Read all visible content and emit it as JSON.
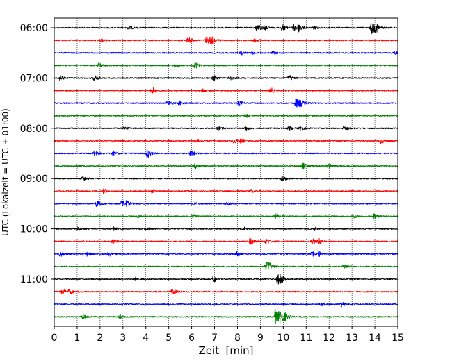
{
  "chart_data": {
    "type": "line",
    "subtype": "helicorder-seismogram",
    "xlabel": "Zeit  [min]",
    "ylabel": "UTC (Lokalzeit = UTC + 01:00)",
    "xlim": [
      0,
      15
    ],
    "x_ticks": [
      0,
      1,
      2,
      3,
      4,
      5,
      6,
      7,
      8,
      9,
      10,
      11,
      12,
      13,
      14,
      15
    ],
    "y_tick_labels": [
      "06:00",
      "07:00",
      "08:00",
      "09:00",
      "10:00",
      "11:00"
    ],
    "grid": "vertical-dotted",
    "trace_colors": [
      "#000000",
      "#ff0000",
      "#0000ff",
      "#008000"
    ],
    "traces": [
      {
        "start": "06:00",
        "color": "#000000",
        "events": [
          [
            3.3,
            0.35
          ],
          [
            8.9,
            0.7
          ],
          [
            9.2,
            0.4
          ],
          [
            10.0,
            0.55
          ],
          [
            10.5,
            0.6
          ],
          [
            10.7,
            0.7
          ],
          [
            11.4,
            0.3
          ],
          [
            13.9,
            1.3
          ],
          [
            14.1,
            0.6
          ]
        ]
      },
      {
        "start": "06:15",
        "color": "#ff0000",
        "events": [
          [
            2.1,
            0.25
          ],
          [
            5.9,
            0.7
          ],
          [
            6.7,
            0.85
          ],
          [
            6.9,
            0.6
          ],
          [
            8.8,
            0.3
          ]
        ]
      },
      {
        "start": "06:30",
        "color": "#0000ff",
        "events": [
          [
            8.2,
            0.3
          ],
          [
            8.7,
            0.25
          ],
          [
            9.6,
            0.25
          ],
          [
            14.9,
            0.3
          ]
        ]
      },
      {
        "start": "06:45",
        "color": "#008000",
        "events": [
          [
            2.0,
            0.45
          ],
          [
            5.3,
            0.3
          ],
          [
            6.2,
            0.5
          ]
        ]
      },
      {
        "start": "07:00",
        "color": "#000000",
        "events": [
          [
            0.3,
            0.4
          ],
          [
            1.8,
            0.45
          ],
          [
            7.0,
            0.55
          ],
          [
            7.7,
            0.4
          ],
          [
            10.3,
            0.5
          ]
        ]
      },
      {
        "start": "07:15",
        "color": "#ff0000",
        "events": [
          [
            4.3,
            0.65
          ],
          [
            6.5,
            0.35
          ],
          [
            9.5,
            0.45
          ]
        ]
      },
      {
        "start": "07:30",
        "color": "#0000ff",
        "events": [
          [
            5.0,
            0.5
          ],
          [
            5.5,
            0.3
          ],
          [
            8.1,
            0.4
          ],
          [
            10.6,
            0.9
          ],
          [
            10.8,
            0.5
          ]
        ]
      },
      {
        "start": "07:45",
        "color": "#008000",
        "events": [
          [
            8.4,
            0.35
          ]
        ]
      },
      {
        "start": "08:00",
        "color": "#000000",
        "events": [
          [
            3.1,
            0.3
          ],
          [
            7.2,
            0.3
          ],
          [
            8.4,
            0.35
          ],
          [
            10.3,
            0.35
          ],
          [
            10.8,
            0.35
          ],
          [
            12.7,
            0.4
          ]
        ]
      },
      {
        "start": "08:15",
        "color": "#ff0000",
        "events": [
          [
            6.3,
            0.25
          ],
          [
            7.9,
            0.45
          ],
          [
            8.2,
            0.4
          ],
          [
            14.3,
            0.45
          ]
        ]
      },
      {
        "start": "08:30",
        "color": "#0000ff",
        "events": [
          [
            1.8,
            0.45
          ],
          [
            2.6,
            0.35
          ],
          [
            4.1,
            0.75
          ],
          [
            6.0,
            0.6
          ]
        ]
      },
      {
        "start": "08:45",
        "color": "#008000",
        "events": [
          [
            1.0,
            0.2
          ],
          [
            6.2,
            0.4
          ],
          [
            10.9,
            0.5
          ],
          [
            12.0,
            0.45
          ]
        ]
      },
      {
        "start": "09:00",
        "color": "#000000",
        "events": [
          [
            1.3,
            0.45
          ],
          [
            10.0,
            0.5
          ]
        ]
      },
      {
        "start": "09:15",
        "color": "#ff0000",
        "events": [
          [
            2.2,
            0.4
          ],
          [
            4.3,
            0.4
          ],
          [
            8.6,
            0.3
          ]
        ]
      },
      {
        "start": "09:30",
        "color": "#0000ff",
        "events": [
          [
            1.9,
            0.55
          ],
          [
            3.0,
            0.6
          ],
          [
            3.2,
            0.4
          ],
          [
            6.1,
            0.3
          ],
          [
            7.6,
            0.35
          ]
        ]
      },
      {
        "start": "09:45",
        "color": "#008000",
        "events": [
          [
            3.7,
            0.3
          ],
          [
            6.1,
            0.4
          ],
          [
            9.7,
            0.45
          ],
          [
            13.1,
            0.3
          ],
          [
            14.0,
            0.45
          ]
        ]
      },
      {
        "start": "10:00",
        "color": "#000000",
        "events": [
          [
            1.1,
            0.3
          ],
          [
            2.6,
            0.3
          ],
          [
            4.1,
            0.25
          ],
          [
            8.3,
            0.3
          ],
          [
            11.4,
            0.3
          ]
        ]
      },
      {
        "start": "10:15",
        "color": "#ff0000",
        "events": [
          [
            2.6,
            0.45
          ],
          [
            8.6,
            0.6
          ],
          [
            9.3,
            0.55
          ],
          [
            11.3,
            0.55
          ],
          [
            11.6,
            0.5
          ]
        ]
      },
      {
        "start": "10:30",
        "color": "#0000ff",
        "events": [
          [
            0.3,
            0.5
          ],
          [
            1.5,
            0.4
          ],
          [
            2.4,
            0.45
          ],
          [
            8.0,
            0.6
          ],
          [
            11.3,
            0.55
          ],
          [
            11.6,
            0.4
          ]
        ]
      },
      {
        "start": "10:45",
        "color": "#008000",
        "events": [
          [
            9.3,
            0.65
          ],
          [
            9.4,
            0.5
          ],
          [
            12.7,
            0.4
          ]
        ]
      },
      {
        "start": "11:00",
        "color": "#000000",
        "events": [
          [
            3.6,
            0.35
          ],
          [
            7.0,
            0.6
          ],
          [
            9.8,
            1.1
          ],
          [
            9.9,
            0.6
          ]
        ]
      },
      {
        "start": "11:15",
        "color": "#ff0000",
        "events": [
          [
            0.4,
            0.35
          ],
          [
            0.7,
            0.4
          ],
          [
            5.2,
            0.5
          ]
        ]
      },
      {
        "start": "11:30",
        "color": "#0000ff",
        "events": [
          [
            11.7,
            0.4
          ],
          [
            12.6,
            0.45
          ]
        ]
      },
      {
        "start": "11:45",
        "color": "#008000",
        "events": [
          [
            1.3,
            0.45
          ],
          [
            2.9,
            0.3
          ],
          [
            9.7,
            1.4
          ],
          [
            9.9,
            1.1
          ],
          [
            10.1,
            0.5
          ]
        ]
      }
    ]
  }
}
